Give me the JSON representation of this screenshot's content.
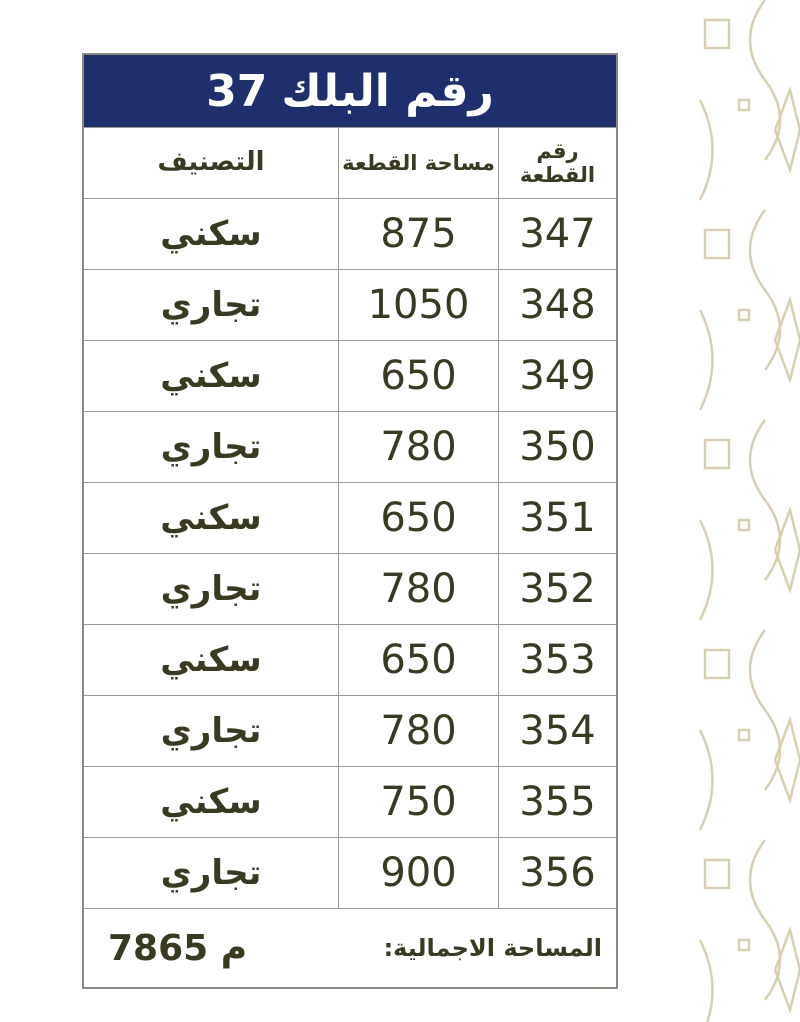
{
  "title": {
    "label": "رقم البلك",
    "block_number": "37"
  },
  "headers": {
    "plot_number": "رقم القطعة",
    "plot_area": "مساحة القطعة",
    "classification": "التصنيف"
  },
  "rows": [
    {
      "plot": "347",
      "area": "875",
      "class": "سكني"
    },
    {
      "plot": "348",
      "area": "1050",
      "class": "تجاري"
    },
    {
      "plot": "349",
      "area": "650",
      "class": "سكني"
    },
    {
      "plot": "350",
      "area": "780",
      "class": "تجاري"
    },
    {
      "plot": "351",
      "area": "650",
      "class": "سكني"
    },
    {
      "plot": "352",
      "area": "780",
      "class": "تجاري"
    },
    {
      "plot": "353",
      "area": "650",
      "class": "سكني"
    },
    {
      "plot": "354",
      "area": "780",
      "class": "تجاري"
    },
    {
      "plot": "355",
      "area": "750",
      "class": "سكني"
    },
    {
      "plot": "356",
      "area": "900",
      "class": "تجاري"
    }
  ],
  "footer": {
    "label": "المساحة الاجمالية:",
    "total": "7865 م"
  },
  "colors": {
    "header_bg": "#1f2f6d",
    "text": "#3a3a22",
    "ornament": "#d8cfb0"
  }
}
